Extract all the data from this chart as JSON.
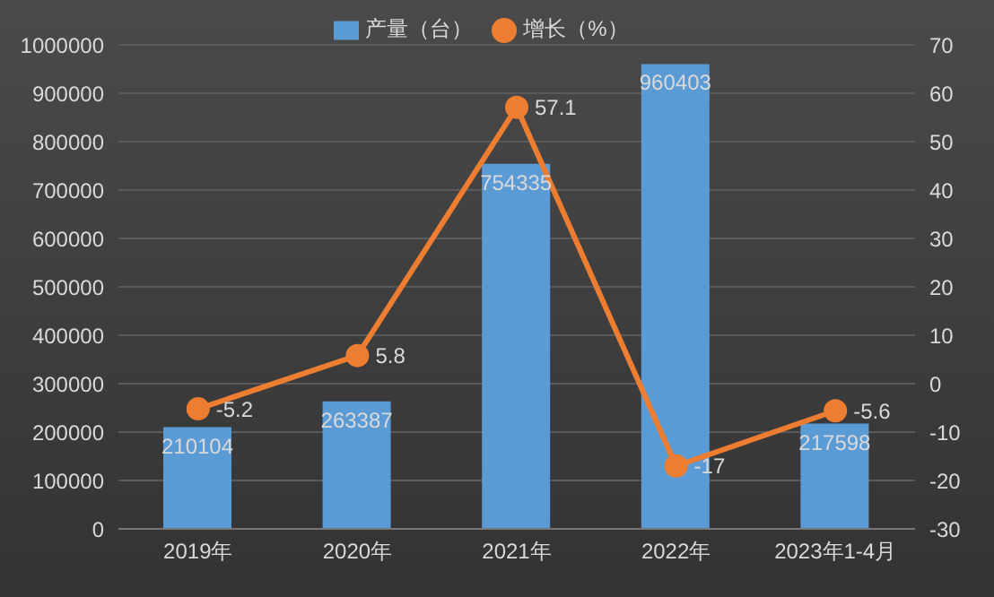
{
  "chart_data": {
    "type": "bar",
    "categories": [
      "2019年",
      "2020年",
      "2021年",
      "2022年",
      "2023年1-4月"
    ],
    "series": [
      {
        "name": "产量（台）",
        "color": "#5b9bd5",
        "values": [
          210104,
          263387,
          754335,
          960403,
          217598
        ]
      },
      {
        "name": "增长（%）",
        "type": "line",
        "axis": "y2",
        "color": "#ed7d31",
        "values": [
          -5.2,
          5.8,
          57.1,
          -17,
          -5.6
        ]
      }
    ],
    "ylim": [
      0,
      1000000
    ],
    "yticks": [
      0,
      100000,
      200000,
      300000,
      400000,
      500000,
      600000,
      700000,
      800000,
      900000,
      1000000
    ],
    "y2lim": [
      -30,
      70
    ],
    "y2ticks": [
      -30,
      -20,
      -10,
      0,
      10,
      20,
      30,
      40,
      50,
      60,
      70
    ],
    "grid": "y",
    "legend": "top",
    "marker": "circle",
    "data_labels": true
  }
}
